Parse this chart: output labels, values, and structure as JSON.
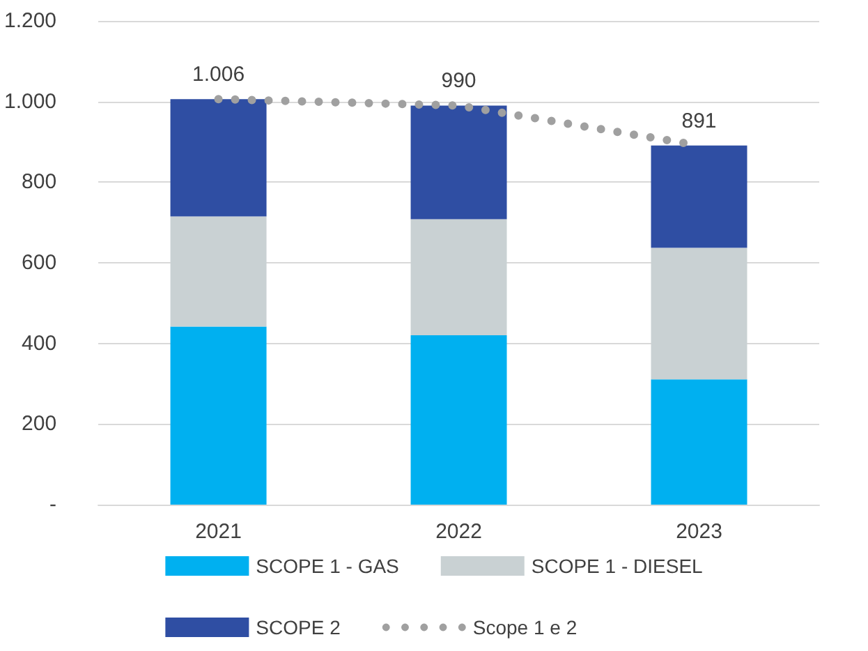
{
  "chart_data": {
    "type": "bar",
    "stacked": true,
    "categories": [
      "2021",
      "2022",
      "2023"
    ],
    "series": [
      {
        "name": "SCOPE 1 - GAS",
        "color": "#00b0f0",
        "values": [
          442,
          420,
          311
        ]
      },
      {
        "name": "SCOPE 1 - DIESEL",
        "color": "#c9d1d3",
        "values": [
          273,
          288,
          326
        ]
      },
      {
        "name": "SCOPE 2",
        "color": "#2f4ea3",
        "values": [
          291,
          282,
          254
        ]
      },
      {
        "name": "Scope 1 e 2",
        "type": "line",
        "color": "#a0a0a0",
        "line_style": "dotted",
        "marker": "none",
        "values": [
          1006,
          990,
          891
        ],
        "value_labels": [
          "1.006",
          "990",
          "891"
        ]
      }
    ],
    "ylim": [
      0,
      1200
    ],
    "yticks": [
      {
        "value": 0,
        "label": "-"
      },
      {
        "value": 200,
        "label": "200"
      },
      {
        "value": 400,
        "label": "400"
      },
      {
        "value": 600,
        "label": "600"
      },
      {
        "value": 800,
        "label": "800"
      },
      {
        "value": 1000,
        "label": "1.000"
      },
      {
        "value": 1200,
        "label": "1.200"
      }
    ],
    "grid": "y",
    "legend": "bottom"
  }
}
